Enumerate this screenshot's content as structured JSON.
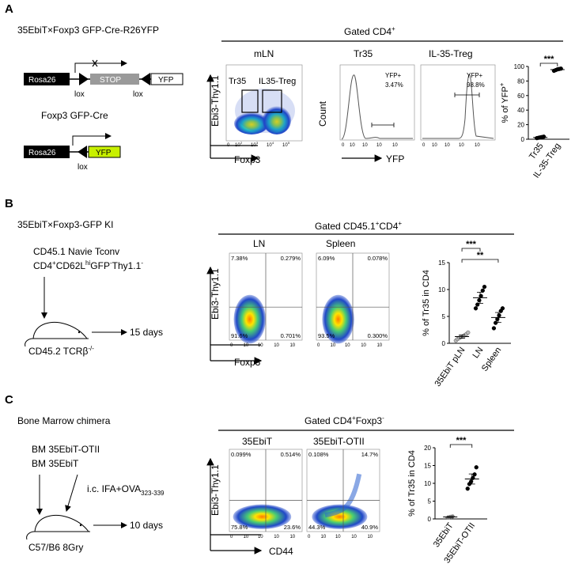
{
  "panelA": {
    "letter": "A",
    "title": "35EbiT×Foxp3 GFP-Cre-R26YFP",
    "construct1": {
      "rosa": "Rosa26",
      "stop": "STOP",
      "yfp": "YFP",
      "lox_left": "lox",
      "lox_right": "lox"
    },
    "subtitle2": "Foxp3 GFP-Cre",
    "construct2": {
      "rosa": "Rosa26",
      "yfp": "YFP",
      "lox": "lox"
    },
    "gate_header": "Gated CD4",
    "gate_header_sup": "+",
    "facs": {
      "title": "mLN",
      "ylabel": "Ebi3-Thy1.1",
      "xlabel": "Foxp3",
      "gate1": "Tr35",
      "gate2": "IL35-Treg",
      "xticks": [
        "0",
        "10",
        "10",
        "10",
        "10"
      ],
      "xexp": [
        "",
        "2",
        "3",
        "4",
        "5"
      ]
    },
    "hist1": {
      "title": "Tr35",
      "label": "YFP+",
      "value": "3.47%",
      "ylabel": "Count",
      "xlabel": "YFP"
    },
    "hist2": {
      "title": "IL-35-Treg",
      "label": "YFP+",
      "value": "98.8%"
    },
    "chart_data": {
      "type": "scatter",
      "categories": [
        "Tr35",
        "IL-35-Treg"
      ],
      "series": [
        {
          "name": "Tr35",
          "values": [
            1.5,
            2.0,
            2.5,
            3.0,
            3.5
          ]
        },
        {
          "name": "IL-35-Treg",
          "values": [
            94,
            95,
            96,
            96.5,
            97
          ]
        }
      ],
      "ylabel": "% of YFP",
      "ylabel_sup": "+",
      "ylim": [
        0,
        100
      ],
      "yticks": [
        "0",
        "20",
        "40",
        "60",
        "80",
        "100"
      ],
      "significance": "***"
    }
  },
  "panelB": {
    "letter": "B",
    "title": "35EbiT×Foxp3-GFP KI",
    "gate_header": "Gated CD45.1",
    "gate_header_sup1": "+",
    "gate_header_mid": "CD4",
    "gate_header_sup2": "+",
    "donor1": "CD45.1 Navie Tconv",
    "donor2_a": "CD4",
    "donor2_sup_a": "+",
    "donor2_b": "CD62L",
    "donor2_sup_b": "hi",
    "donor2_c": "GFP",
    "donor2_sup_c": "-",
    "donor2_d": "Thy1.1",
    "donor2_sup_d": "-",
    "days": "15 days",
    "recipient": "CD45.2 TCRβ",
    "recipient_sup": "-/-",
    "facs_ylabel": "Ebi3-Thy1.1",
    "facs_xlabel": "Foxp3",
    "facs1": {
      "title": "LN",
      "q1": "7.38%",
      "q2": "0.279%",
      "q3": "91.6%",
      "q4": "0.701%"
    },
    "facs2": {
      "title": "Spleen",
      "q1": "6.09%",
      "q2": "0.078%",
      "q3": "93.5%",
      "q4": "0.300%"
    },
    "chart_data": {
      "type": "scatter",
      "categories": [
        "35EbiT pLN",
        "LN",
        "Spleen"
      ],
      "series": [
        {
          "name": "35EbiT pLN",
          "values": [
            0.5,
            0.8,
            1.0,
            1.2,
            1.3,
            1.5,
            1.7,
            2.0
          ]
        },
        {
          "name": "LN",
          "values": [
            6.5,
            7.2,
            8.0,
            8.8,
            9.8,
            10.5
          ]
        },
        {
          "name": "Spleen",
          "values": [
            2.8,
            3.8,
            4.5,
            5.2,
            6.0,
            6.5
          ]
        }
      ],
      "ylabel": "% of Tr35 in CD4",
      "ylim": [
        0,
        15
      ],
      "yticks": [
        "0",
        "5",
        "10",
        "15"
      ],
      "significance": [
        "***",
        "**"
      ]
    }
  },
  "panelC": {
    "letter": "C",
    "title": "Bone Marrow chimera",
    "gate_header": "Gated CD4",
    "gate_header_sup1": "+",
    "gate_header_mid": "Foxp3",
    "gate_header_sup2": "-",
    "bm1": "BM  35EbiT-OTII",
    "bm2": "BM  35EbiT",
    "immun": "i.c. IFA+OVA",
    "immun_sub": "323-339",
    "days": "10 days",
    "recipient": "C57/B6  8Gry",
    "facs_ylabel": "Ebi3-Thy1.1",
    "facs_xlabel": "CD44",
    "facs1": {
      "title": "35EbiT",
      "q1": "0.099%",
      "q2": "0.514%",
      "q3": "75.8%",
      "q4": "23.6%"
    },
    "facs2": {
      "title": "35EbiT-OTII",
      "q1": "0.108%",
      "q2": "14.7%",
      "q3": "44.3%",
      "q4": "40.9%"
    },
    "chart_data": {
      "type": "scatter",
      "categories": [
        "35EbiT",
        "35EbiT-OTII"
      ],
      "series": [
        {
          "name": "35EbiT",
          "values": [
            0.4,
            0.5,
            0.6,
            0.7
          ]
        },
        {
          "name": "35EbiT-OTII",
          "values": [
            8.5,
            9.8,
            10.5,
            11.5,
            12.5,
            14.5
          ]
        }
      ],
      "ylabel": "% of Tr35 in CD4",
      "ylim": [
        0,
        20
      ],
      "yticks": [
        "0",
        "5",
        "10",
        "15",
        "20"
      ],
      "significance": "***"
    }
  }
}
